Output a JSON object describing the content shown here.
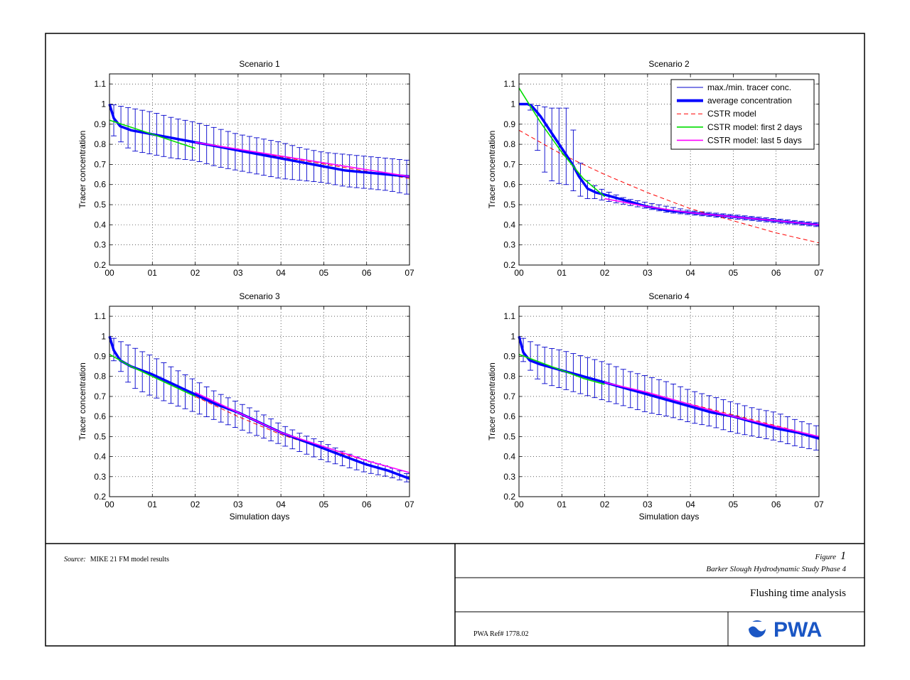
{
  "figure": {
    "source_label": "Source:",
    "source_text": "MIKE 21 FM model results",
    "figure_label": "Figure",
    "figure_number": "1",
    "study": "Barker Slough Hydrodynamic Study Phase 4",
    "title": "Flushing time analysis",
    "ref": "PWA Ref# 1778.02",
    "logo_text": "PWA",
    "logo_color": "#1a56c4"
  },
  "colors": {
    "max_min": "#0000cc",
    "average": "#0000ff",
    "cstr": "#ff0000",
    "cstr_first2": "#00dd00",
    "cstr_last5": "#ff00ff"
  },
  "legend": {
    "entries": [
      "max./min. tracer conc.",
      "average concentration",
      "CSTR model",
      "CSTR model: first 2 days",
      "CSTR model: last 5 days"
    ]
  },
  "chart_data": [
    {
      "type": "line",
      "title": "Scenario 1",
      "xlabel": "",
      "ylabel": "Tracer concentration",
      "xlim": [
        0,
        7
      ],
      "ylim": [
        0.2,
        1.15
      ],
      "xticks": [
        "00",
        "01",
        "02",
        "03",
        "04",
        "05",
        "06",
        "07"
      ],
      "yticks": [
        "0.2",
        "0.3",
        "0.4",
        "0.5",
        "0.6",
        "0.7",
        "0.8",
        "0.9",
        "1",
        "1.1"
      ],
      "grid": true,
      "average": {
        "x": [
          0,
          0.1,
          0.25,
          0.5,
          1,
          1.5,
          2,
          2.5,
          3,
          3.5,
          4,
          4.5,
          5,
          5.5,
          6,
          6.5,
          7
        ],
        "y": [
          1.0,
          0.93,
          0.89,
          0.87,
          0.85,
          0.83,
          0.81,
          0.79,
          0.77,
          0.75,
          0.73,
          0.71,
          0.69,
          0.67,
          0.66,
          0.65,
          0.64
        ]
      },
      "max": {
        "x": [
          0,
          0.5,
          1,
          1.5,
          2,
          2.5,
          3,
          3.5,
          4,
          4.5,
          5,
          5.5,
          6,
          6.5,
          7
        ],
        "y": [
          1.0,
          0.98,
          0.96,
          0.93,
          0.91,
          0.88,
          0.85,
          0.83,
          0.81,
          0.78,
          0.76,
          0.75,
          0.74,
          0.73,
          0.72
        ]
      },
      "min": {
        "x": [
          0,
          0.5,
          1,
          1.5,
          2,
          2.5,
          3,
          3.5,
          4,
          4.5,
          5,
          5.5,
          6,
          6.5,
          7
        ],
        "y": [
          0.86,
          0.77,
          0.75,
          0.73,
          0.72,
          0.69,
          0.67,
          0.65,
          0.63,
          0.62,
          0.61,
          0.59,
          0.58,
          0.57,
          0.55
        ]
      },
      "cstr": {
        "x": [
          2,
          7
        ],
        "y": [
          0.81,
          0.63
        ]
      },
      "cstr_first2": {
        "x": [
          0,
          2
        ],
        "y": [
          0.92,
          0.78
        ]
      },
      "cstr_last5": {
        "x": [
          2,
          7
        ],
        "y": [
          0.81,
          0.64
        ]
      },
      "legend": false
    },
    {
      "type": "line",
      "title": "Scenario 2",
      "xlabel": "",
      "ylabel": "Tracer concentration",
      "xlim": [
        0,
        7
      ],
      "ylim": [
        0.2,
        1.15
      ],
      "xticks": [
        "00",
        "01",
        "02",
        "03",
        "04",
        "05",
        "06",
        "07"
      ],
      "yticks": [
        "0.2",
        "0.3",
        "0.4",
        "0.5",
        "0.6",
        "0.7",
        "0.8",
        "0.9",
        "1",
        "1.1"
      ],
      "grid": true,
      "average": {
        "x": [
          0,
          0.2,
          0.3,
          0.5,
          0.75,
          1,
          1.25,
          1.4,
          1.6,
          1.8,
          2,
          2.5,
          3,
          3.5,
          4,
          4.5,
          5,
          5.5,
          6,
          6.5,
          7
        ],
        "y": [
          1.0,
          1.0,
          0.99,
          0.94,
          0.86,
          0.78,
          0.7,
          0.64,
          0.58,
          0.56,
          0.55,
          0.52,
          0.49,
          0.47,
          0.46,
          0.45,
          0.44,
          0.43,
          0.42,
          0.41,
          0.4
        ]
      },
      "max": {
        "x": [
          0,
          0.25,
          0.5,
          0.75,
          1,
          1.15,
          1.3,
          1.45,
          1.6,
          1.8,
          2,
          2.5,
          3,
          3.5,
          4,
          4.5,
          5,
          5.5,
          6,
          6.5,
          7
        ],
        "y": [
          1.0,
          1.0,
          0.99,
          0.98,
          0.98,
          0.98,
          0.84,
          0.69,
          0.62,
          0.59,
          0.57,
          0.53,
          0.51,
          0.49,
          0.47,
          0.46,
          0.45,
          0.44,
          0.43,
          0.42,
          0.41
        ]
      },
      "min": {
        "x": [
          0,
          0.25,
          0.5,
          0.75,
          1,
          1.15,
          1.3,
          1.45,
          1.6,
          1.8,
          2,
          2.5,
          3,
          3.5,
          4,
          4.5,
          5,
          5.5,
          6,
          6.5,
          7
        ],
        "y": [
          1.0,
          0.99,
          0.69,
          0.62,
          0.6,
          0.6,
          0.56,
          0.54,
          0.53,
          0.53,
          0.52,
          0.5,
          0.48,
          0.46,
          0.45,
          0.44,
          0.43,
          0.42,
          0.41,
          0.4,
          0.39
        ]
      },
      "cstr": {
        "x": [
          0,
          1,
          2,
          3,
          4,
          5,
          6,
          7
        ],
        "y": [
          0.87,
          0.75,
          0.65,
          0.56,
          0.48,
          0.42,
          0.36,
          0.31
        ]
      },
      "cstr_first2": {
        "x": [
          0,
          0.5,
          1,
          1.5,
          2
        ],
        "y": [
          1.08,
          0.91,
          0.76,
          0.63,
          0.54
        ]
      },
      "cstr_last5": {
        "x": [
          2,
          3,
          4,
          5,
          6,
          7
        ],
        "y": [
          0.53,
          0.49,
          0.46,
          0.44,
          0.42,
          0.4
        ]
      },
      "legend": true,
      "legend_position": "top-right"
    },
    {
      "type": "line",
      "title": "Scenario 3",
      "xlabel": "Simulation days",
      "ylabel": "Tracer concentration",
      "xlim": [
        0,
        7
      ],
      "ylim": [
        0.2,
        1.15
      ],
      "xticks": [
        "00",
        "01",
        "02",
        "03",
        "04",
        "05",
        "06",
        "07"
      ],
      "yticks": [
        "0.2",
        "0.3",
        "0.4",
        "0.5",
        "0.6",
        "0.7",
        "0.8",
        "0.9",
        "1",
        "1.1"
      ],
      "grid": true,
      "average": {
        "x": [
          0,
          0.1,
          0.25,
          0.5,
          1,
          1.5,
          2,
          2.5,
          3,
          3.5,
          4,
          4.5,
          5,
          5.5,
          6,
          6.5,
          7
        ],
        "y": [
          1.0,
          0.93,
          0.88,
          0.85,
          0.81,
          0.76,
          0.71,
          0.66,
          0.62,
          0.57,
          0.52,
          0.48,
          0.44,
          0.4,
          0.36,
          0.33,
          0.29
        ]
      },
      "max": {
        "x": [
          0,
          0.5,
          1,
          1.5,
          2,
          2.5,
          3,
          3.5,
          4,
          4.5,
          5,
          5.5,
          6,
          6.5,
          7
        ],
        "y": [
          1.0,
          0.95,
          0.9,
          0.84,
          0.78,
          0.72,
          0.67,
          0.62,
          0.56,
          0.51,
          0.47,
          0.42,
          0.38,
          0.35,
          0.31
        ]
      },
      "min": {
        "x": [
          0,
          0.5,
          1,
          1.5,
          2,
          2.5,
          3,
          3.5,
          4,
          4.5,
          5,
          5.5,
          6,
          6.5,
          7
        ],
        "y": [
          0.91,
          0.75,
          0.7,
          0.66,
          0.62,
          0.58,
          0.54,
          0.5,
          0.46,
          0.42,
          0.38,
          0.35,
          0.32,
          0.3,
          0.27
        ]
      },
      "cstr": {
        "x": [
          2,
          3,
          4,
          5,
          6,
          7
        ],
        "y": [
          0.7,
          0.6,
          0.51,
          0.44,
          0.38,
          0.32
        ]
      },
      "cstr_first2": {
        "x": [
          0,
          0.5,
          1,
          1.5,
          2
        ],
        "y": [
          0.91,
          0.85,
          0.8,
          0.75,
          0.7
        ]
      },
      "cstr_last5": {
        "x": [
          2,
          3,
          4,
          5,
          6,
          7
        ],
        "y": [
          0.72,
          0.62,
          0.52,
          0.45,
          0.38,
          0.32
        ]
      },
      "legend": false
    },
    {
      "type": "line",
      "title": "Scenario 4",
      "xlabel": "Simulation days",
      "ylabel": "Tracer concentration",
      "xlim": [
        0,
        7
      ],
      "ylim": [
        0.2,
        1.15
      ],
      "xticks": [
        "00",
        "01",
        "02",
        "03",
        "04",
        "05",
        "06",
        "07"
      ],
      "yticks": [
        "0.2",
        "0.3",
        "0.4",
        "0.5",
        "0.6",
        "0.7",
        "0.8",
        "0.9",
        "1",
        "1.1"
      ],
      "grid": true,
      "average": {
        "x": [
          0,
          0.1,
          0.25,
          0.5,
          1,
          1.5,
          2,
          2.5,
          3,
          3.5,
          4,
          4.5,
          5,
          5.5,
          6,
          6.5,
          7
        ],
        "y": [
          1.0,
          0.92,
          0.88,
          0.86,
          0.83,
          0.8,
          0.77,
          0.74,
          0.71,
          0.68,
          0.65,
          0.62,
          0.6,
          0.57,
          0.54,
          0.52,
          0.49
        ]
      },
      "max": {
        "x": [
          0,
          0.5,
          1,
          1.5,
          2,
          2.5,
          3,
          3.5,
          4,
          4.5,
          5,
          5.5,
          6,
          6.5,
          7
        ],
        "y": [
          1.0,
          0.95,
          0.93,
          0.9,
          0.87,
          0.83,
          0.8,
          0.77,
          0.73,
          0.7,
          0.67,
          0.64,
          0.62,
          0.58,
          0.55
        ]
      },
      "min": {
        "x": [
          0,
          0.5,
          1,
          1.5,
          2,
          2.5,
          3,
          3.5,
          4,
          4.5,
          5,
          5.5,
          6,
          6.5,
          7
        ],
        "y": [
          0.9,
          0.77,
          0.74,
          0.71,
          0.68,
          0.65,
          0.62,
          0.6,
          0.57,
          0.55,
          0.52,
          0.5,
          0.48,
          0.45,
          0.43
        ]
      },
      "cstr": {
        "x": [
          2,
          7
        ],
        "y": [
          0.77,
          0.5
        ]
      },
      "cstr_first2": {
        "x": [
          0,
          0.5,
          1,
          1.5,
          2
        ],
        "y": [
          0.91,
          0.87,
          0.83,
          0.79,
          0.76
        ]
      },
      "cstr_last5": {
        "x": [
          2,
          3,
          4,
          5,
          6,
          7
        ],
        "y": [
          0.77,
          0.72,
          0.66,
          0.6,
          0.55,
          0.5
        ]
      },
      "legend": false
    }
  ]
}
